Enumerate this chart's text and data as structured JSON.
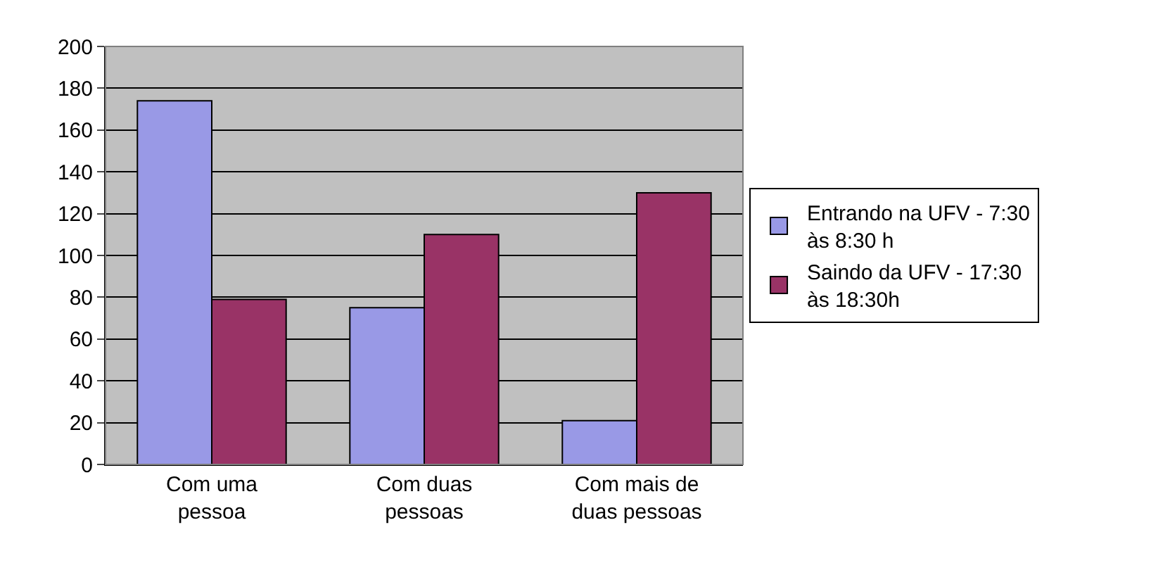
{
  "chart_data": {
    "type": "bar",
    "categories": [
      "Com uma pessoa",
      "Com duas pessoas",
      "Com mais de duas pessoas"
    ],
    "series": [
      {
        "name": "Entrando na UFV - 7:30 às 8:30 h",
        "color": "#9999e6",
        "values": [
          174,
          75,
          21
        ]
      },
      {
        "name": "Saindo da UFV - 17:30 às 18:30h",
        "color": "#993366",
        "values": [
          79,
          110,
          130
        ]
      }
    ],
    "ylim": [
      0,
      200
    ],
    "yticks": [
      0,
      20,
      40,
      60,
      80,
      100,
      120,
      140,
      160,
      180,
      200
    ],
    "grid": "y",
    "legend": "right"
  }
}
